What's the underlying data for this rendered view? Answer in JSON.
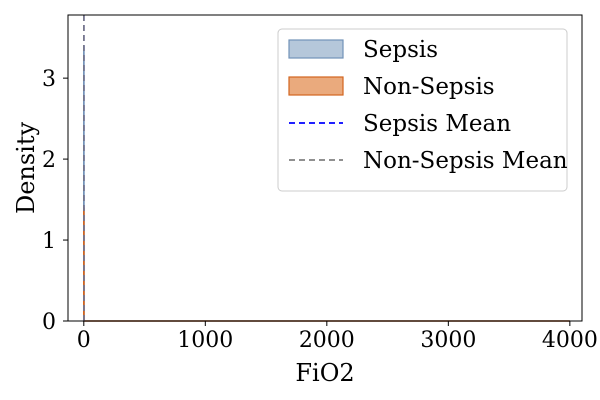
{
  "chart_data": {
    "type": "area",
    "xlabel": "FiO2",
    "ylabel": "Density",
    "xlim": [
      -130,
      4100
    ],
    "ylim": [
      0,
      3.78
    ],
    "xticks": [
      0,
      1000,
      2000,
      3000,
      4000
    ],
    "xtick_labels": [
      "0",
      "1000",
      "2000",
      "3000",
      "4000"
    ],
    "yticks": [
      0,
      1,
      2,
      3
    ],
    "ytick_labels": [
      "0",
      "1",
      "2",
      "3"
    ],
    "grid": false,
    "legend_position": "upper-right",
    "series": [
      {
        "name": "Sepsis",
        "kind": "kde-fill",
        "fill": "#b5c7da",
        "stroke": "#7292b8",
        "x": [
          0,
          0.3,
          0.6,
          1.0,
          1.4,
          4000
        ],
        "y": [
          0,
          3.3,
          3.4,
          3.3,
          0,
          0
        ]
      },
      {
        "name": "Non-Sepsis",
        "kind": "kde-fill",
        "fill": "#eaaa7d",
        "stroke": "#d2651f",
        "x": [
          0,
          0.3,
          0.6,
          1.0,
          1.4,
          4000
        ],
        "y": [
          0,
          1.3,
          1.4,
          1.3,
          0,
          0
        ]
      },
      {
        "name": "Sepsis Mean",
        "kind": "vline",
        "stroke": "#0000ff",
        "x_value": 0.6
      },
      {
        "name": "Non-Sepsis Mean",
        "kind": "vline",
        "stroke": "#808080",
        "x_value": 0.7
      }
    ]
  }
}
